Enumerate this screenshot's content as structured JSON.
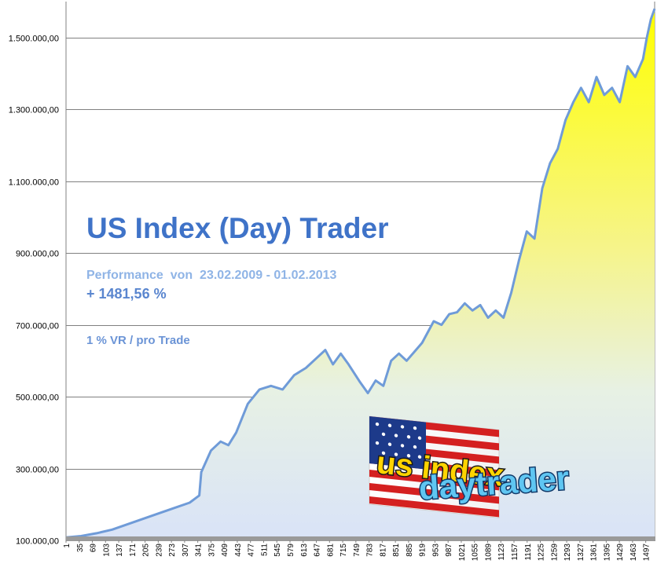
{
  "chart_data": {
    "type": "area",
    "title": "US Index (Day) Trader",
    "subtitle": "Performance  von  23.02.2009 - 01.02.2013",
    "gain": "+ 1481,56 %",
    "note": "1 % VR / pro Trade",
    "logo_text": [
      "us index",
      "daytrader"
    ],
    "xlabel": "",
    "ylabel": "",
    "ylim": [
      100000,
      1600000
    ],
    "xlim": [
      1,
      1520
    ],
    "grid": true,
    "yticks": [
      {
        "value": 100000,
        "label": "100.000,00"
      },
      {
        "value": 300000,
        "label": "300.000,00"
      },
      {
        "value": 500000,
        "label": "500.000,00"
      },
      {
        "value": 700000,
        "label": "700.000,00"
      },
      {
        "value": 900000,
        "label": "900.000,00"
      },
      {
        "value": 1100000,
        "label": "1.100.000,00"
      },
      {
        "value": 1300000,
        "label": "1.300.000,00"
      },
      {
        "value": 1500000,
        "label": "1.500.000,00"
      }
    ],
    "xticks": [
      "1",
      "35",
      "69",
      "103",
      "137",
      "171",
      "205",
      "239",
      "273",
      "307",
      "341",
      "375",
      "409",
      "443",
      "477",
      "511",
      "545",
      "579",
      "613",
      "647",
      "681",
      "715",
      "749",
      "783",
      "817",
      "851",
      "885",
      "919",
      "953",
      "987",
      "1021",
      "1055",
      "1089",
      "1123",
      "1157",
      "1191",
      "1225",
      "1259",
      "1293",
      "1327",
      "1361",
      "1395",
      "1429",
      "1463",
      "1497"
    ],
    "series": [
      {
        "name": "",
        "x": [
          1,
          40,
          80,
          120,
          160,
          200,
          240,
          280,
          320,
          345,
          350,
          375,
          400,
          420,
          440,
          470,
          500,
          530,
          560,
          590,
          620,
          650,
          670,
          690,
          710,
          730,
          760,
          780,
          800,
          820,
          840,
          860,
          880,
          900,
          920,
          950,
          970,
          990,
          1010,
          1030,
          1050,
          1070,
          1090,
          1110,
          1130,
          1150,
          1170,
          1190,
          1210,
          1230,
          1250,
          1270,
          1290,
          1310,
          1330,
          1350,
          1370,
          1390,
          1410,
          1430,
          1450,
          1470,
          1490,
          1500,
          1510,
          1520
        ],
        "y": [
          108000,
          112000,
          120000,
          130000,
          145000,
          160000,
          175000,
          190000,
          205000,
          225000,
          290000,
          350000,
          375000,
          365000,
          400000,
          480000,
          520000,
          530000,
          520000,
          560000,
          580000,
          610000,
          630000,
          590000,
          620000,
          590000,
          540000,
          510000,
          545000,
          530000,
          600000,
          620000,
          600000,
          625000,
          650000,
          710000,
          700000,
          730000,
          735000,
          760000,
          740000,
          755000,
          720000,
          740000,
          720000,
          790000,
          880000,
          960000,
          940000,
          1080000,
          1150000,
          1190000,
          1270000,
          1320000,
          1360000,
          1320000,
          1390000,
          1340000,
          1360000,
          1320000,
          1420000,
          1390000,
          1440000,
          1500000,
          1550000,
          1580000
        ]
      }
    ]
  }
}
